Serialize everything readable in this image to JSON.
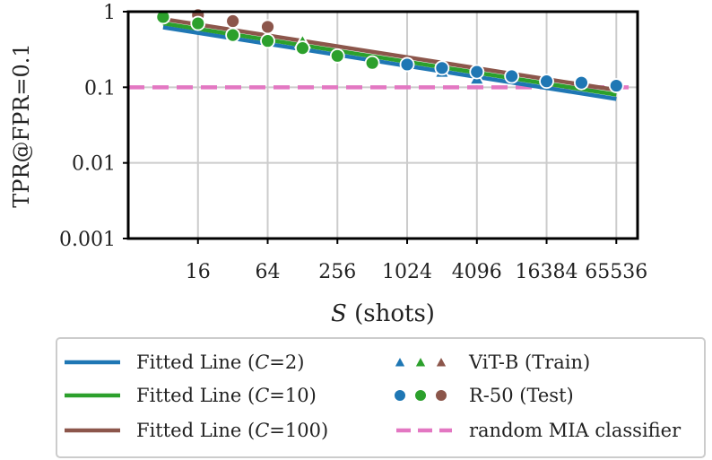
{
  "chart_data": {
    "type": "scatter",
    "x_scale": "log2",
    "y_scale": "log10",
    "xlabel_var": "S",
    "xlabel_rest": " (shots)",
    "ylabel": "TPR@FPR=0.1",
    "xlim": [
      4,
      100000
    ],
    "ylim": [
      0.001,
      1
    ],
    "x_ticks": [
      16,
      64,
      256,
      1024,
      4096,
      16384,
      65536
    ],
    "x_tick_labels": [
      "16",
      "64",
      "256",
      "1024",
      "4096",
      "16384",
      "65536"
    ],
    "y_ticks": [
      0.001,
      0.01,
      0.1,
      1
    ],
    "y_tick_labels": [
      "0.001",
      "0.01",
      "0.1",
      "1"
    ],
    "grid": true,
    "colors": {
      "C2": "#1f77b4",
      "C10": "#2ca02c",
      "C100": "#8c564b",
      "random": "#e377c2"
    },
    "fitted_lines": [
      {
        "name": "C2",
        "x": [
          8,
          65536
        ],
        "y": [
          0.62,
          0.07
        ]
      },
      {
        "name": "C10",
        "x": [
          8,
          65536
        ],
        "y": [
          0.7,
          0.08
        ]
      },
      {
        "name": "C100",
        "x": [
          8,
          65536
        ],
        "y": [
          0.8,
          0.092
        ]
      }
    ],
    "random_line": {
      "y": 0.1
    },
    "markers": [
      {
        "series": "C10",
        "shape": "circle",
        "x": 8,
        "y": 0.85
      },
      {
        "series": "C100",
        "shape": "circle",
        "x": 16,
        "y": 0.9
      },
      {
        "series": "C10",
        "shape": "circle",
        "x": 16,
        "y": 0.7
      },
      {
        "series": "C100",
        "shape": "circle",
        "x": 32,
        "y": 0.75
      },
      {
        "series": "C10",
        "shape": "circle",
        "x": 32,
        "y": 0.49
      },
      {
        "series": "C100",
        "shape": "circle",
        "x": 64,
        "y": 0.63
      },
      {
        "series": "C10",
        "shape": "circle",
        "x": 64,
        "y": 0.41
      },
      {
        "series": "C10",
        "shape": "triangle",
        "x": 128,
        "y": 0.4
      },
      {
        "series": "C10",
        "shape": "circle",
        "x": 128,
        "y": 0.33
      },
      {
        "series": "C10",
        "shape": "circle",
        "x": 256,
        "y": 0.26
      },
      {
        "series": "C10",
        "shape": "circle",
        "x": 512,
        "y": 0.21
      },
      {
        "series": "C2",
        "shape": "circle",
        "x": 1024,
        "y": 0.2
      },
      {
        "series": "C2",
        "shape": "triangle",
        "x": 2048,
        "y": 0.16
      },
      {
        "series": "C2",
        "shape": "circle",
        "x": 2048,
        "y": 0.18
      },
      {
        "series": "C2",
        "shape": "triangle",
        "x": 4096,
        "y": 0.13
      },
      {
        "series": "C2",
        "shape": "circle",
        "x": 4096,
        "y": 0.16
      },
      {
        "series": "C2",
        "shape": "circle",
        "x": 8192,
        "y": 0.14
      },
      {
        "series": "C2",
        "shape": "circle",
        "x": 16384,
        "y": 0.12
      },
      {
        "series": "C2",
        "shape": "circle",
        "x": 32768,
        "y": 0.115
      },
      {
        "series": "C2",
        "shape": "circle",
        "x": 65536,
        "y": 0.105
      }
    ],
    "legend": {
      "placement": "bottom",
      "fitted_prefix": "Fitted Line (",
      "fitted_var": "C",
      "fitted_c2": "=2)",
      "fitted_c10": "=10)",
      "fitted_c100": "=100)",
      "vit": "ViT-B (Train)",
      "r50": "R-50 (Test)",
      "random": "random MIA classifier"
    }
  }
}
